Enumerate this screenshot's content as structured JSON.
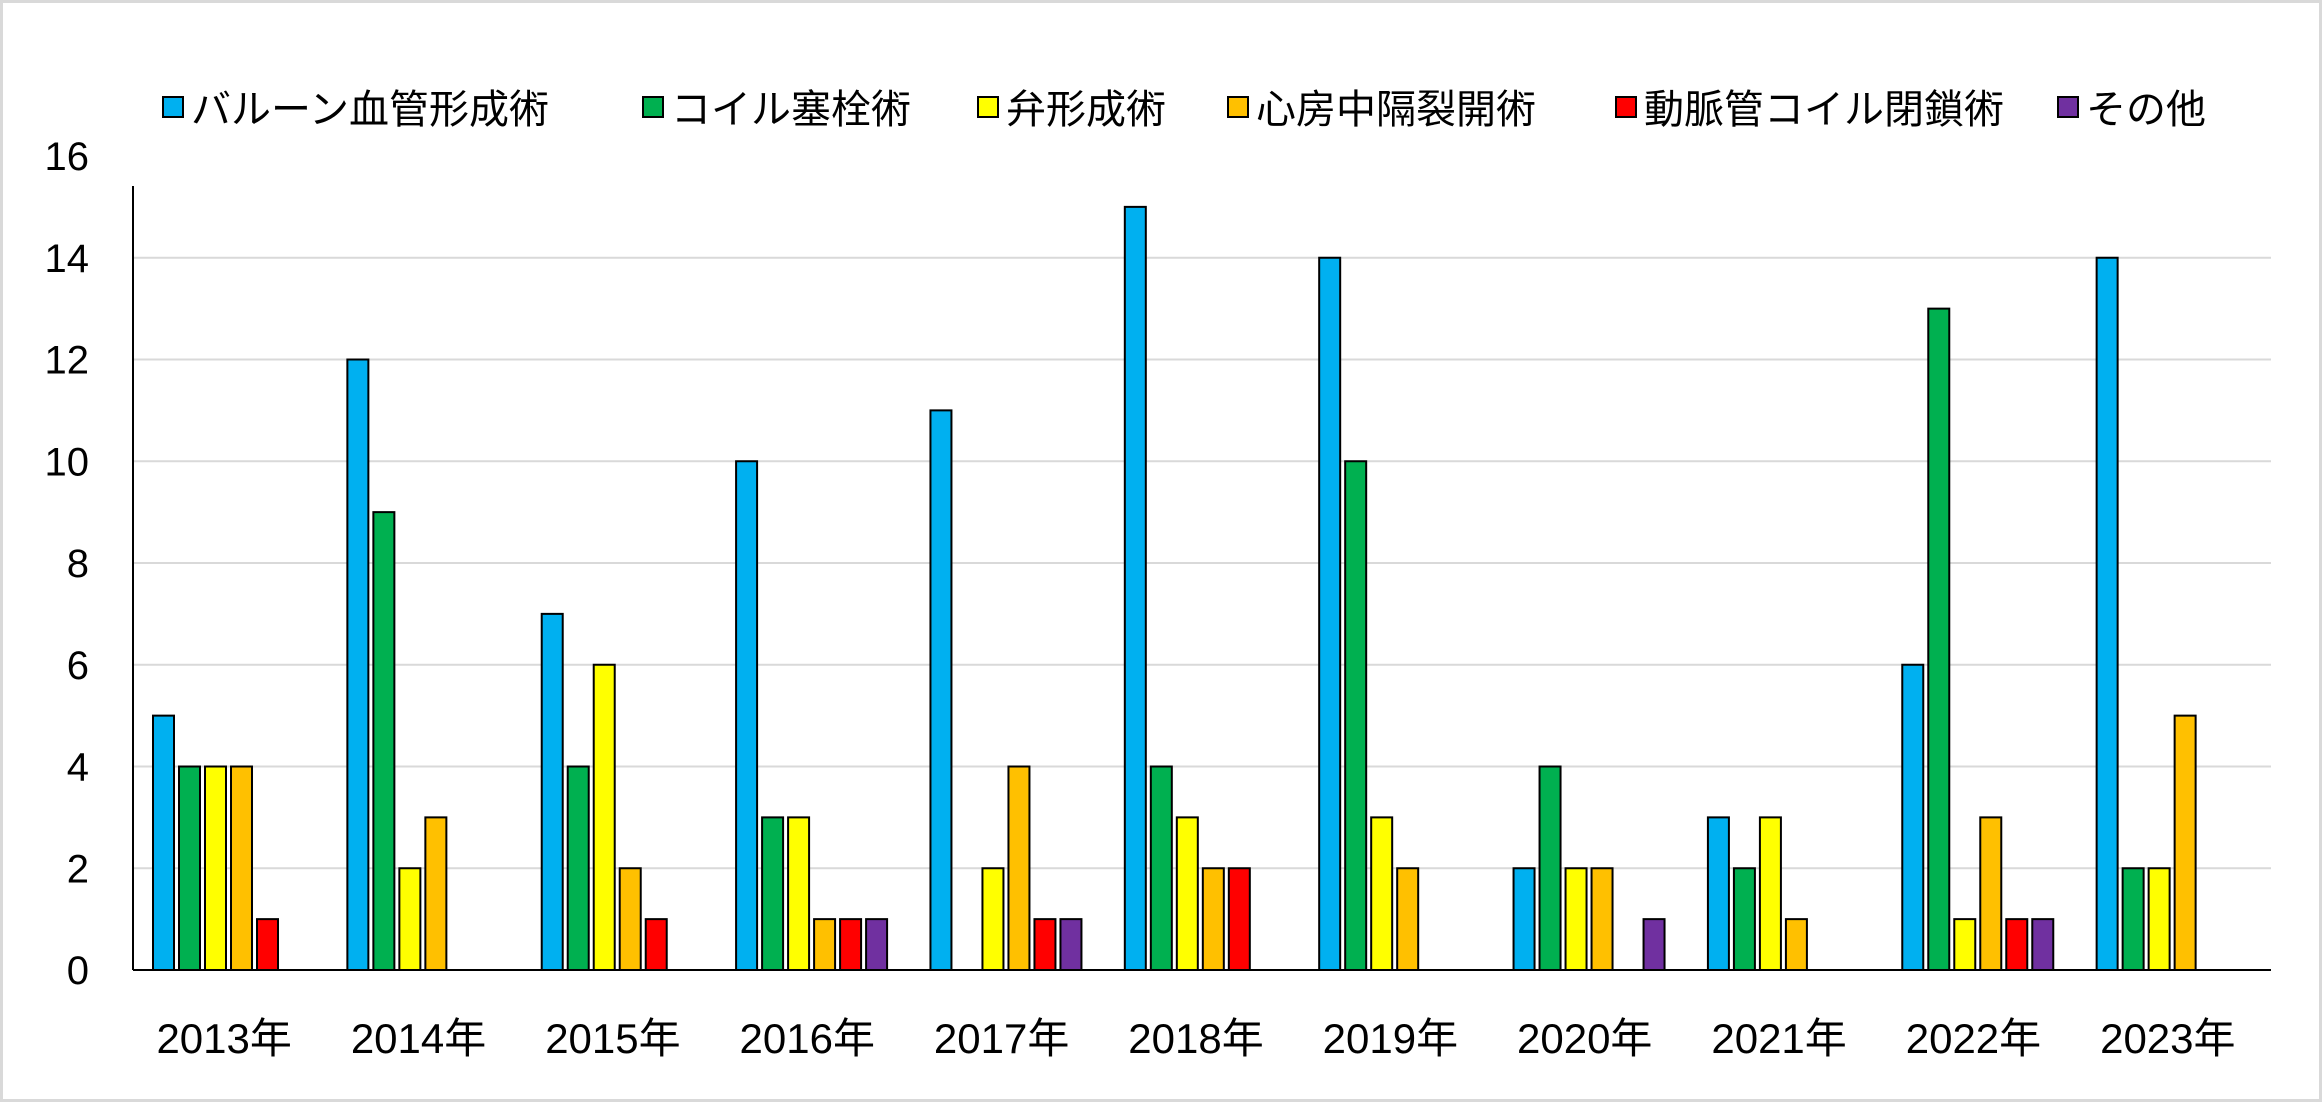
{
  "chart_data": {
    "type": "bar",
    "categories": [
      "2013年",
      "2014年",
      "2015年",
      "2016年",
      "2017年",
      "2018年",
      "2019年",
      "2020年",
      "2021年",
      "2022年",
      "2023年"
    ],
    "series": [
      {
        "name": "バルーン血管形成術",
        "color": "#00b0f0",
        "values": [
          5,
          12,
          7,
          10,
          11,
          15,
          14,
          2,
          3,
          6,
          14
        ]
      },
      {
        "name": "コイル塞栓術",
        "color": "#00b050",
        "values": [
          4,
          9,
          4,
          3,
          0,
          4,
          10,
          4,
          2,
          13,
          2
        ]
      },
      {
        "name": "弁形成術",
        "color": "#ffff00",
        "values": [
          4,
          2,
          6,
          3,
          2,
          3,
          3,
          2,
          3,
          1,
          2
        ]
      },
      {
        "name": "心房中隔裂開術",
        "color": "#ffc000",
        "values": [
          4,
          3,
          2,
          1,
          4,
          2,
          2,
          2,
          1,
          3,
          5
        ]
      },
      {
        "name": "動脈管コイル閉鎖術",
        "color": "#ff0000",
        "values": [
          1,
          0,
          1,
          1,
          1,
          2,
          0,
          0,
          0,
          1,
          0
        ]
      },
      {
        "name": "その他",
        "color": "#7030a0",
        "values": [
          0,
          0,
          0,
          1,
          1,
          0,
          0,
          1,
          0,
          1,
          0
        ]
      }
    ],
    "yticks": [
      "0",
      "2",
      "4",
      "6",
      "8",
      "10",
      "12",
      "14",
      "16"
    ],
    "ylim": [
      0,
      16
    ],
    "grid": true,
    "legend_position": "top"
  }
}
